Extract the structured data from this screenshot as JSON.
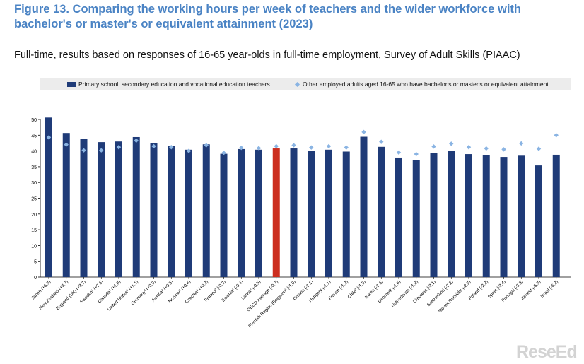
{
  "title": "Figure 13. Comparing the working hours per week of teachers and the wider workforce with bachelor's or master's or equivalent attainment (2023)",
  "subtitle": "Full-time, results based on responses of 16-65 year-olds in full-time employment, Survey of Adult Skills (PIAAC)",
  "watermark": "ReseEd",
  "colors": {
    "teachers": "#1f3b78",
    "highlight": "#cc2e1f",
    "others": "#8ab4e3",
    "legend_bg": "#ececec"
  },
  "chart_data": {
    "type": "bar",
    "ylim": [
      0,
      50
    ],
    "yticks": [
      0,
      5,
      10,
      15,
      20,
      25,
      30,
      35,
      40,
      45,
      50
    ],
    "grid": false,
    "legend_position": "top",
    "categories": [
      "Japan (+6.3)",
      "New Zealand (+3.7)",
      "England (UK) (+3.7)",
      "Sweden¹ (+2.6)",
      "Canada² (+1.8)",
      "United States³ (+1.1)",
      "Germany² (+0.9)",
      "Austria² (+0.5)",
      "Norway³ (+0.4)",
      "Czechia² (+0.3)",
      "Finland³ (-0.3)",
      "Estonia² (-0.4)",
      "Latvia² (-0.5)",
      "OECD average (-0.7)",
      "Flemish Region (Belgium)¹ (-1.0)",
      "Croatia (-1.1)",
      "Hungary (-1.1)",
      "France (-1.3)",
      "Chile³ (-1.5)",
      "Korea (-1.6)",
      "Denmark (-1.6)",
      "Netherlands (-1.8)",
      "Lithuania (-2.1)",
      "Switzerland (-2.2)",
      "Slovak Republic (-2.2)",
      "Poland (-2.2)",
      "Spain (-2.4)",
      "Portugal (-3.9)",
      "Ireland (-5.3)",
      "Israel (-6.2)"
    ],
    "highlight_category": "OECD average (-0.7)",
    "series": [
      {
        "name": "Primary school, secondary education and vocational education teachers",
        "marker": "bar",
        "values": [
          50.6,
          45.7,
          43.9,
          42.8,
          43.0,
          44.4,
          42.4,
          41.7,
          40.4,
          42.1,
          39.1,
          40.6,
          40.4,
          40.8,
          40.8,
          40.0,
          40.4,
          39.8,
          44.5,
          41.3,
          37.9,
          37.2,
          39.3,
          40.1,
          39.0,
          38.6,
          38.1,
          38.5,
          35.4,
          38.8
        ]
      },
      {
        "name": "Other employed adults aged 16-65 who have bachelor's or master's or equivalent attainment",
        "marker": "diamond",
        "values": [
          44.3,
          42.0,
          40.2,
          40.2,
          41.2,
          43.3,
          41.5,
          41.2,
          40.0,
          41.8,
          39.4,
          41.0,
          40.9,
          41.5,
          41.8,
          41.1,
          41.5,
          41.1,
          46.0,
          42.9,
          39.5,
          39.0,
          41.4,
          42.3,
          41.2,
          40.8,
          40.5,
          42.4,
          40.7,
          45.0
        ]
      }
    ]
  }
}
